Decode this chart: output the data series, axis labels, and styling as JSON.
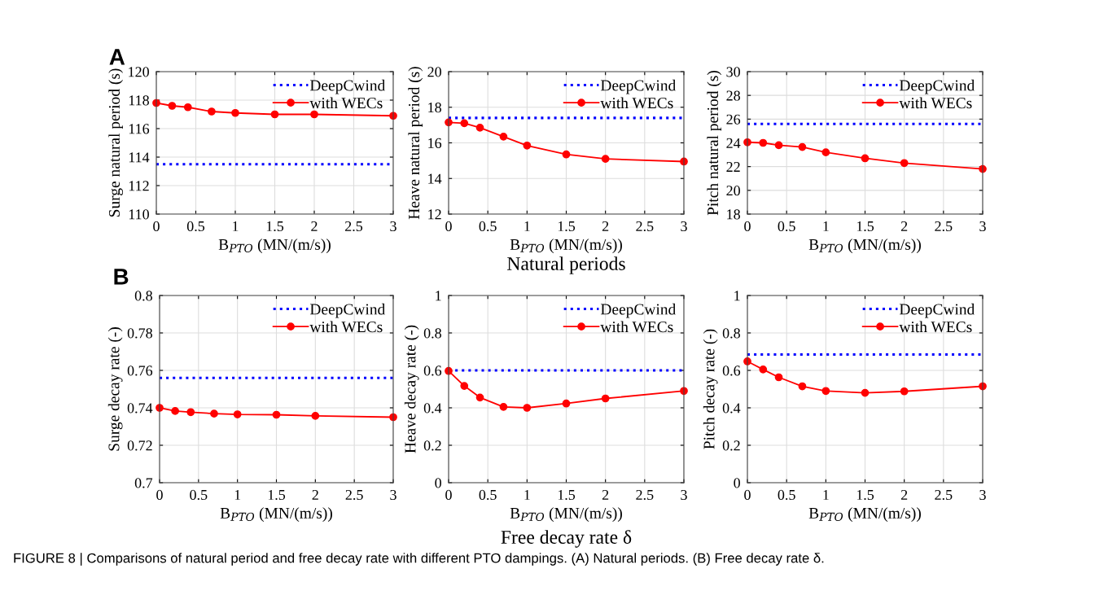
{
  "chart_data": [
    {
      "type": "line",
      "xlabel": "B$_{PTO}$ (MN/(m/s))",
      "ylabel": "Surge natural period (s)",
      "xlim": [
        0,
        3
      ],
      "ylim": [
        110,
        120
      ],
      "xticks": [
        0,
        0.5,
        1,
        1.5,
        2,
        2.5,
        3
      ],
      "yticks": [
        110,
        112,
        114,
        116,
        118,
        120
      ],
      "grid": true,
      "legend": "top right",
      "annotations": [
        "A",
        "FIGURE 8 | Comparisons of natural period and free decay rate with different PTO dampings. (A) Natural periods. (B) Free decay rate δ."
      ],
      "series": [
        {
          "name": "DeepCwind",
          "color": "#0000ff",
          "x": [
            0,
            3
          ],
          "values": [
            113.5,
            113.5
          ],
          "line_style": "dotted",
          "marker": "none"
        },
        {
          "name": "with WECs",
          "color": "#ff0000",
          "x": [
            0,
            0.2,
            0.4,
            0.7,
            1,
            1.5,
            2,
            3
          ],
          "values": [
            117.8,
            117.6,
            117.5,
            117.2,
            117.1,
            117.0,
            117.0,
            116.9
          ],
          "line_style": "solid",
          "marker": "circle"
        }
      ]
    },
    {
      "type": "line",
      "xlabel": "B$_{PTO}$ (MN/(m/s))",
      "ylabel": "Heave natural period (s)",
      "xlim": [
        0,
        3
      ],
      "ylim": [
        12,
        20
      ],
      "xticks": [
        0,
        0.5,
        1,
        1.5,
        2,
        2.5,
        3
      ],
      "yticks": [
        12,
        14,
        16,
        18,
        20
      ],
      "grid": true,
      "legend": "top right",
      "annotations": [
        "Natural periods"
      ],
      "series": [
        {
          "name": "DeepCwind",
          "color": "#0000ff",
          "x": [
            0,
            3
          ],
          "values": [
            17.4,
            17.4
          ],
          "line_style": "dotted",
          "marker": "none"
        },
        {
          "name": "with WECs",
          "color": "#ff0000",
          "x": [
            0,
            0.2,
            0.4,
            0.7,
            1,
            1.5,
            2,
            3
          ],
          "values": [
            17.15,
            17.1,
            16.85,
            16.35,
            15.85,
            15.35,
            15.1,
            14.95
          ],
          "line_style": "solid",
          "marker": "circle"
        }
      ]
    },
    {
      "type": "line",
      "xlabel": "B$_{PTO}$ (MN/(m/s))",
      "ylabel": "Pitch natural period (s)",
      "xlim": [
        0,
        3
      ],
      "ylim": [
        18,
        30
      ],
      "xticks": [
        0,
        0.5,
        1,
        1.5,
        2,
        2.5,
        3
      ],
      "yticks": [
        18,
        20,
        22,
        24,
        26,
        28,
        30
      ],
      "grid": true,
      "legend": "top right",
      "series": [
        {
          "name": "DeepCwind",
          "color": "#0000ff",
          "x": [
            0,
            3
          ],
          "values": [
            25.6,
            25.6
          ],
          "line_style": "dotted",
          "marker": "none"
        },
        {
          "name": "with WECs",
          "color": "#ff0000",
          "x": [
            0,
            0.2,
            0.4,
            0.7,
            1,
            1.5,
            2,
            3
          ],
          "values": [
            24.05,
            24.0,
            23.8,
            23.65,
            23.2,
            22.7,
            22.3,
            21.8
          ],
          "line_style": "solid",
          "marker": "circle"
        }
      ]
    },
    {
      "type": "line",
      "xlabel": "B$_{PTO}$ (MN/(m/s))",
      "ylabel": "Surge decay rate (-)",
      "xlim": [
        0,
        3
      ],
      "ylim": [
        0.7,
        0.8
      ],
      "xticks": [
        0,
        0.5,
        1,
        1.5,
        2,
        2.5,
        3
      ],
      "yticks": [
        0.7,
        0.72,
        0.74,
        0.76,
        0.78,
        0.8
      ],
      "grid": true,
      "legend": "top right",
      "annotations": [
        "B"
      ],
      "series": [
        {
          "name": "DeepCwind",
          "color": "#0000ff",
          "x": [
            0,
            3
          ],
          "values": [
            0.756,
            0.756
          ],
          "line_style": "dotted",
          "marker": "none"
        },
        {
          "name": "with WECs",
          "color": "#ff0000",
          "x": [
            0,
            0.2,
            0.4,
            0.7,
            1,
            1.5,
            2,
            3
          ],
          "values": [
            0.74,
            0.7383,
            0.7377,
            0.7369,
            0.7365,
            0.7363,
            0.7357,
            0.735
          ],
          "line_style": "solid",
          "marker": "circle"
        }
      ]
    },
    {
      "type": "line",
      "xlabel": "B$_{PTO}$ (MN/(m/s))",
      "ylabel": "Heave decay rate (-)",
      "xlim": [
        0,
        3
      ],
      "ylim": [
        0,
        1
      ],
      "xticks": [
        0,
        0.5,
        1,
        1.5,
        2,
        2.5,
        3
      ],
      "yticks": [
        0,
        0.2,
        0.4,
        0.6,
        0.8,
        1
      ],
      "grid": true,
      "legend": "top right",
      "annotations": [
        "Free decay rate δ"
      ],
      "series": [
        {
          "name": "DeepCwind",
          "color": "#0000ff",
          "x": [
            0,
            3
          ],
          "values": [
            0.6,
            0.6
          ],
          "line_style": "dotted",
          "marker": "none"
        },
        {
          "name": "with WECs",
          "color": "#ff0000",
          "x": [
            0,
            0.2,
            0.4,
            0.7,
            1,
            1.5,
            2,
            3
          ],
          "values": [
            0.597,
            0.517,
            0.455,
            0.405,
            0.4,
            0.423,
            0.45,
            0.49
          ],
          "line_style": "solid",
          "marker": "circle"
        }
      ]
    },
    {
      "type": "line",
      "xlabel": "B$_{PTO}$ (MN/(m/s))",
      "ylabel": "Pitch decay rate (-)",
      "xlim": [
        0,
        3
      ],
      "ylim": [
        0,
        1
      ],
      "xticks": [
        0,
        0.5,
        1,
        1.5,
        2,
        2.5,
        3
      ],
      "yticks": [
        0,
        0.2,
        0.4,
        0.6,
        0.8,
        1
      ],
      "grid": true,
      "legend": "top right",
      "series": [
        {
          "name": "DeepCwind",
          "color": "#0000ff",
          "x": [
            0,
            3
          ],
          "values": [
            0.685,
            0.685
          ],
          "line_style": "dotted",
          "marker": "none"
        },
        {
          "name": "with WECs",
          "color": "#ff0000",
          "x": [
            0,
            0.2,
            0.4,
            0.7,
            1,
            1.5,
            2,
            3
          ],
          "values": [
            0.648,
            0.605,
            0.563,
            0.515,
            0.49,
            0.48,
            0.488,
            0.515
          ],
          "line_style": "solid",
          "marker": "circle"
        }
      ]
    }
  ]
}
